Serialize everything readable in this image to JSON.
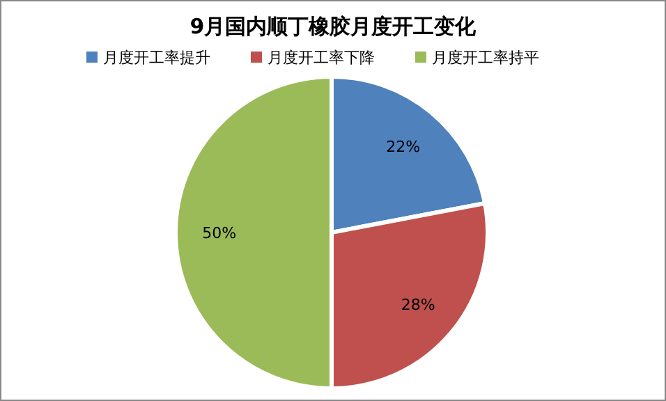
{
  "chart_data": {
    "type": "pie",
    "title": "9月国内顺丁橡胶月度开工变化",
    "categories": [
      "月度开工率提升",
      "月度开工率下降",
      "月度开工率持平"
    ],
    "values": [
      22,
      28,
      50
    ],
    "value_labels": [
      "22%",
      "28%",
      "50%"
    ],
    "colors": [
      "#4f81bd",
      "#c0504d",
      "#9bbb59"
    ],
    "legend": "top"
  }
}
